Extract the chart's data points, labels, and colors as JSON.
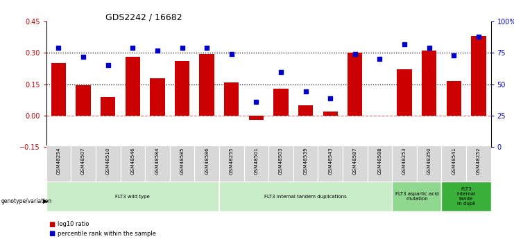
{
  "title": "GDS2242 / 16682",
  "samples": [
    "GSM48254",
    "GSM48507",
    "GSM48510",
    "GSM48546",
    "GSM48584",
    "GSM48585",
    "GSM48586",
    "GSM48255",
    "GSM48501",
    "GSM48503",
    "GSM48539",
    "GSM48543",
    "GSM48587",
    "GSM48588",
    "GSM48253",
    "GSM48350",
    "GSM48541",
    "GSM48252"
  ],
  "log10_ratio": [
    0.25,
    0.145,
    0.09,
    0.28,
    0.18,
    0.26,
    0.295,
    0.16,
    -0.02,
    0.13,
    0.05,
    0.02,
    0.3,
    0.0,
    0.22,
    0.31,
    0.165,
    0.38
  ],
  "percentile_rank": [
    79,
    72,
    65,
    79,
    77,
    79,
    79,
    74,
    36,
    60,
    44,
    39,
    74,
    70,
    82,
    79,
    73,
    88
  ],
  "groups": [
    {
      "label": "FLT3 wild type",
      "start": 0,
      "end": 7,
      "color": "#c8ecc8"
    },
    {
      "label": "FLT3 internal tandem duplications",
      "start": 7,
      "end": 14,
      "color": "#c8ecc8"
    },
    {
      "label": "FLT3 aspartic acid\nmutation",
      "start": 14,
      "end": 16,
      "color": "#90d890"
    },
    {
      "label": "FLT3\ninternal\ntande\nm dupli",
      "start": 16,
      "end": 18,
      "color": "#3aaf3a"
    }
  ],
  "ylim_left": [
    -0.15,
    0.45
  ],
  "ylim_right": [
    0,
    100
  ],
  "yticks_left": [
    -0.15,
    0,
    0.15,
    0.3,
    0.45
  ],
  "yticks_right": [
    0,
    25,
    50,
    75,
    100
  ],
  "bar_color": "#cc0000",
  "dot_color": "#0000cc",
  "bar_width": 0.6
}
